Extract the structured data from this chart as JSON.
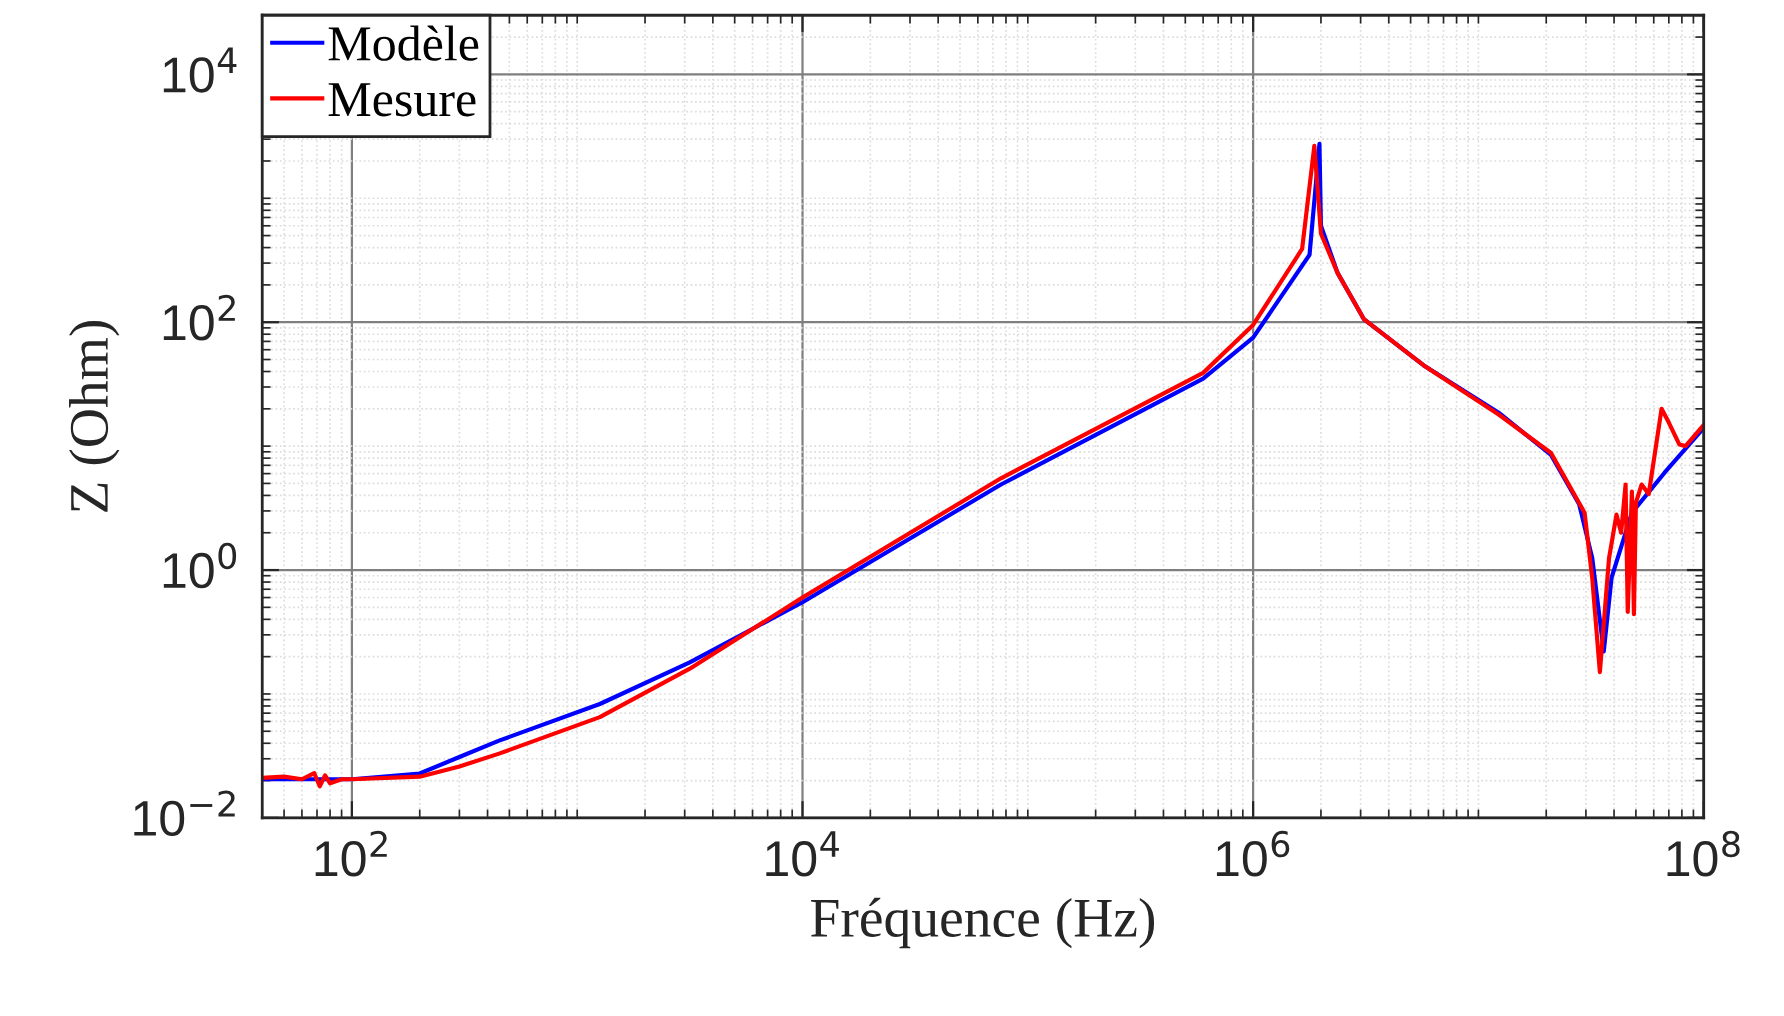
{
  "chart_data": {
    "type": "line",
    "xlabel": "Fréquence (Hz)",
    "ylabel": "Z (Ohm)",
    "log": "xy",
    "grid": true,
    "legend": "top left",
    "line_style": "solid",
    "marker": "none",
    "xlim": [
      40,
      100000000
    ],
    "ylim": [
      0.01,
      30000
    ],
    "xticks": [
      {
        "value": 100,
        "label": "10$^{2}$"
      },
      {
        "value": 10000,
        "label": "10$^{4}$"
      },
      {
        "value": 1000000,
        "label": "10$^{6}$"
      },
      {
        "value": 100000000,
        "label": "10$^{8}$"
      }
    ],
    "yticks": [
      {
        "value": 0.01,
        "label": "10$^{−2}$"
      },
      {
        "value": 1,
        "label": "10$^{0}$"
      },
      {
        "value": 100,
        "label": "10$^{2}$"
      },
      {
        "value": 10000,
        "label": "10$^{4}$"
      }
    ],
    "series": [
      {
        "name": "Modèle",
        "color": "#0000ff",
        "x": [
          40,
          100,
          200,
          300,
          450,
          1260,
          3160,
          10000,
          76000,
          600000,
          1000000,
          1780000,
          1970000,
          2000000,
          2370000,
          3100000,
          5700000,
          12300000,
          21000000,
          28000000,
          32000000,
          36000000,
          39000000,
          48000000,
          67000000,
          100000000
        ],
        "values": [
          0.0205,
          0.0205,
          0.0228,
          0.031,
          0.042,
          0.083,
          0.18,
          0.55,
          4.9,
          35,
          75,
          350,
          2750,
          600,
          250,
          106,
          45,
          18.6,
          8.5,
          3.4,
          1.25,
          0.22,
          0.87,
          2.9,
          6.1,
          14
        ]
      },
      {
        "name": "Mesure",
        "color": "#ff0000",
        "x": [
          40,
          50,
          60,
          68,
          72,
          76,
          80,
          90,
          100,
          200,
          300,
          450,
          1260,
          3160,
          10000,
          76000,
          600000,
          1000000,
          1650000,
          1870000,
          2000000,
          2370000,
          3100000,
          5700000,
          12300000,
          21000000,
          29600000,
          32000000,
          34600000,
          38000000,
          41000000,
          43000000,
          45000000,
          46000000,
          48000000,
          49000000,
          50000000,
          53000000,
          57000000,
          65000000,
          70000000,
          78000000,
          83000000,
          100000000
        ],
        "values": [
          0.021,
          0.0215,
          0.0205,
          0.023,
          0.018,
          0.022,
          0.019,
          0.0205,
          0.0205,
          0.0215,
          0.026,
          0.033,
          0.065,
          0.16,
          0.6,
          5.5,
          39,
          95,
          390,
          2650,
          520,
          250,
          106,
          45,
          18,
          8.8,
          2.9,
          0.86,
          0.15,
          1.25,
          2.8,
          2.0,
          4.9,
          0.46,
          4.3,
          0.44,
          3.5,
          4.9,
          4.1,
          20,
          15.5,
          10.3,
          10,
          14.8
        ]
      }
    ]
  }
}
